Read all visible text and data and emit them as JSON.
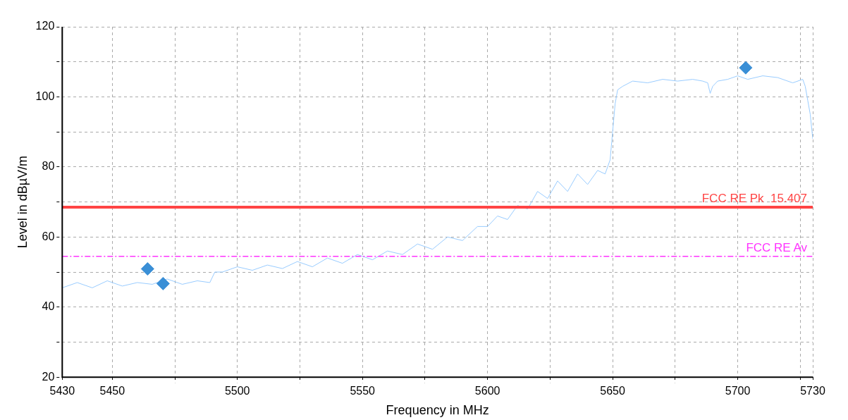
{
  "chart_data": {
    "type": "line",
    "xlabel": "Frequency in MHz",
    "ylabel": "Level in dBµV/m",
    "xlim": [
      5430,
      5730
    ],
    "xticks": [
      5430,
      5450,
      {
        "value": 5475,
        "label": null
      },
      5500,
      {
        "value": 5525,
        "label": null
      },
      5550,
      {
        "value": 5575,
        "label": null
      },
      5600,
      {
        "value": 5625,
        "label": null
      },
      5650,
      {
        "value": 5675,
        "label": null
      },
      5700,
      {
        "value": 5725,
        "label": null
      },
      5730
    ],
    "ylim": [
      20,
      120
    ],
    "yticks": [
      20,
      {
        "value": 30,
        "label": null
      },
      40,
      {
        "value": 50,
        "label": null
      },
      60,
      {
        "value": 70,
        "label": null
      },
      80,
      {
        "value": 90,
        "label": null
      },
      100,
      {
        "value": 110,
        "label": null
      },
      120
    ],
    "grid": true,
    "series": [
      {
        "type": "line",
        "color": "#99ccff",
        "marker": "none",
        "x": [
          5430,
          5436,
          5442,
          5448,
          5454,
          5460,
          5466,
          5472,
          5478,
          5484,
          5489,
          5491,
          5494,
          5500,
          5506,
          5512,
          5518,
          5524,
          5530,
          5536,
          5542,
          5548,
          5554,
          5560,
          5566,
          5572,
          5578,
          5584,
          5590,
          5596,
          5600,
          5604,
          5608,
          5612,
          5616,
          5620,
          5624,
          5628,
          5632,
          5636,
          5640,
          5644,
          5647,
          5649,
          5650,
          5651,
          5652,
          5654,
          5658,
          5664,
          5670,
          5676,
          5682,
          5686,
          5688,
          5689,
          5690,
          5692,
          5696,
          5700,
          5704,
          5710,
          5716,
          5722,
          5726,
          5727,
          5728,
          5729,
          5730
        ],
        "values": [
          45.5,
          47,
          45.5,
          47.5,
          46,
          47,
          46.5,
          48,
          46.5,
          47.5,
          47,
          50,
          50,
          51.5,
          50.5,
          52,
          51,
          53,
          51.5,
          54,
          52.5,
          55,
          53.5,
          56,
          55,
          58,
          56.5,
          60,
          59,
          63,
          63,
          66,
          65,
          69,
          68,
          73,
          71,
          76,
          73,
          78,
          75,
          79,
          78,
          82,
          90,
          98,
          102,
          103,
          104.5,
          104,
          105,
          104.5,
          105,
          104.5,
          104,
          101,
          103,
          104.5,
          105,
          106,
          105,
          106,
          105.5,
          104,
          105,
          103,
          99,
          95,
          88
        ]
      },
      {
        "type": "scatter",
        "color": "#3a8fd6",
        "marker": "diamond",
        "x": [
          5464.1,
          5470.3,
          5703.2
        ],
        "values": [
          50.9,
          46.7,
          108.3
        ]
      }
    ],
    "ref_lines": [
      {
        "axis": "y",
        "value": 68.5,
        "label": "FCC RE Pk  15.407",
        "color": "#ff4444",
        "line_style": "solid"
      },
      {
        "axis": "y",
        "value": 54.5,
        "label": "FCC RE Av",
        "color": "#ff33ff",
        "line_style": "dashed"
      }
    ]
  }
}
